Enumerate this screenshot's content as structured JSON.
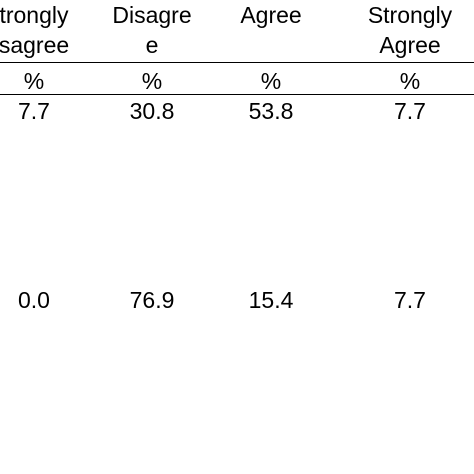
{
  "table": {
    "headers": [
      {
        "line1": "trongly",
        "line2": "sagree"
      },
      {
        "line1": "Disagre",
        "line2": "e"
      },
      {
        "line1": "Agree",
        "line2": ""
      },
      {
        "line1": "Strongly",
        "line2": "Agree"
      }
    ],
    "units": [
      "%",
      "%",
      "%",
      "%"
    ],
    "rows": [
      [
        "7.7",
        "30.8",
        "53.8",
        "7.7"
      ],
      [
        "0.0",
        "76.9",
        "15.4",
        "7.7"
      ]
    ]
  }
}
